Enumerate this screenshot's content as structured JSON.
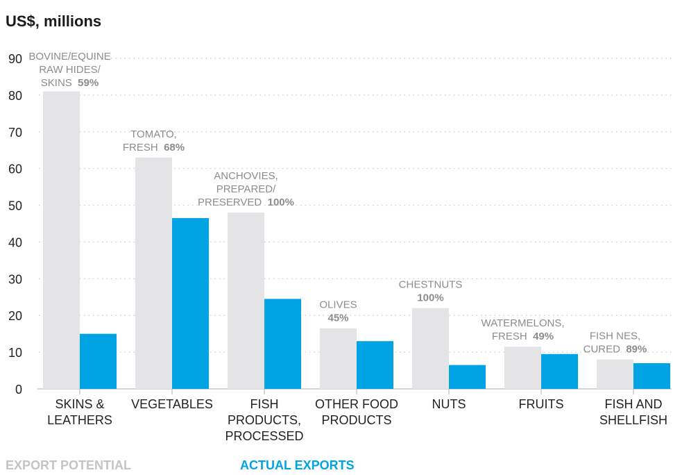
{
  "chart_data": {
    "type": "bar",
    "unit_label": "US$, millions",
    "ylim": [
      0,
      90
    ],
    "yticks": [
      0,
      10,
      20,
      30,
      40,
      50,
      60,
      70,
      80,
      90
    ],
    "grid": true,
    "legend_placement": "bottom",
    "categories": [
      [
        "SKINS &",
        "LEATHERS"
      ],
      [
        "VEGETABLES"
      ],
      [
        "FISH",
        "PRODUCTS,",
        "PROCESSED"
      ],
      [
        "OTHER FOOD",
        "PRODUCTS"
      ],
      [
        "NUTS"
      ],
      [
        "FRUITS"
      ],
      [
        "FISH AND",
        "SHELLFISH"
      ]
    ],
    "series": [
      {
        "name": "EXPORT POTENTIAL",
        "color": "#e4e4e6",
        "values": [
          81,
          63,
          48,
          16.5,
          22,
          11.5,
          8
        ]
      },
      {
        "name": "ACTUAL EXPORTS",
        "color": "#00a3e4",
        "values": [
          15,
          46.5,
          24.5,
          13,
          6.5,
          9.5,
          7
        ]
      }
    ],
    "annotations": [
      {
        "lines": [
          "BOVINE/EQUINE",
          "RAW HIDES/",
          "SKINS"
        ],
        "pct": "59%"
      },
      {
        "lines": [
          "TOMATO,",
          "FRESH"
        ],
        "pct": "68%"
      },
      {
        "lines": [
          "ANCHOVIES,",
          "PREPARED/",
          "PRESERVED"
        ],
        "pct": "100%"
      },
      {
        "lines": [
          "OLIVES"
        ],
        "pct": "45%"
      },
      {
        "lines": [
          "CHESTNUTS"
        ],
        "pct": "100%"
      },
      {
        "lines": [
          "WATERMELONS,",
          "FRESH"
        ],
        "pct": "49%"
      },
      {
        "lines": [
          "FISH NES,",
          "CURED"
        ],
        "pct": "89%"
      }
    ]
  },
  "legend": {
    "potential_label": "EXPORT POTENTIAL",
    "potential_color": "#c4c4c6",
    "actual_label": "ACTUAL EXPORTS",
    "actual_color": "#00a3e4"
  }
}
